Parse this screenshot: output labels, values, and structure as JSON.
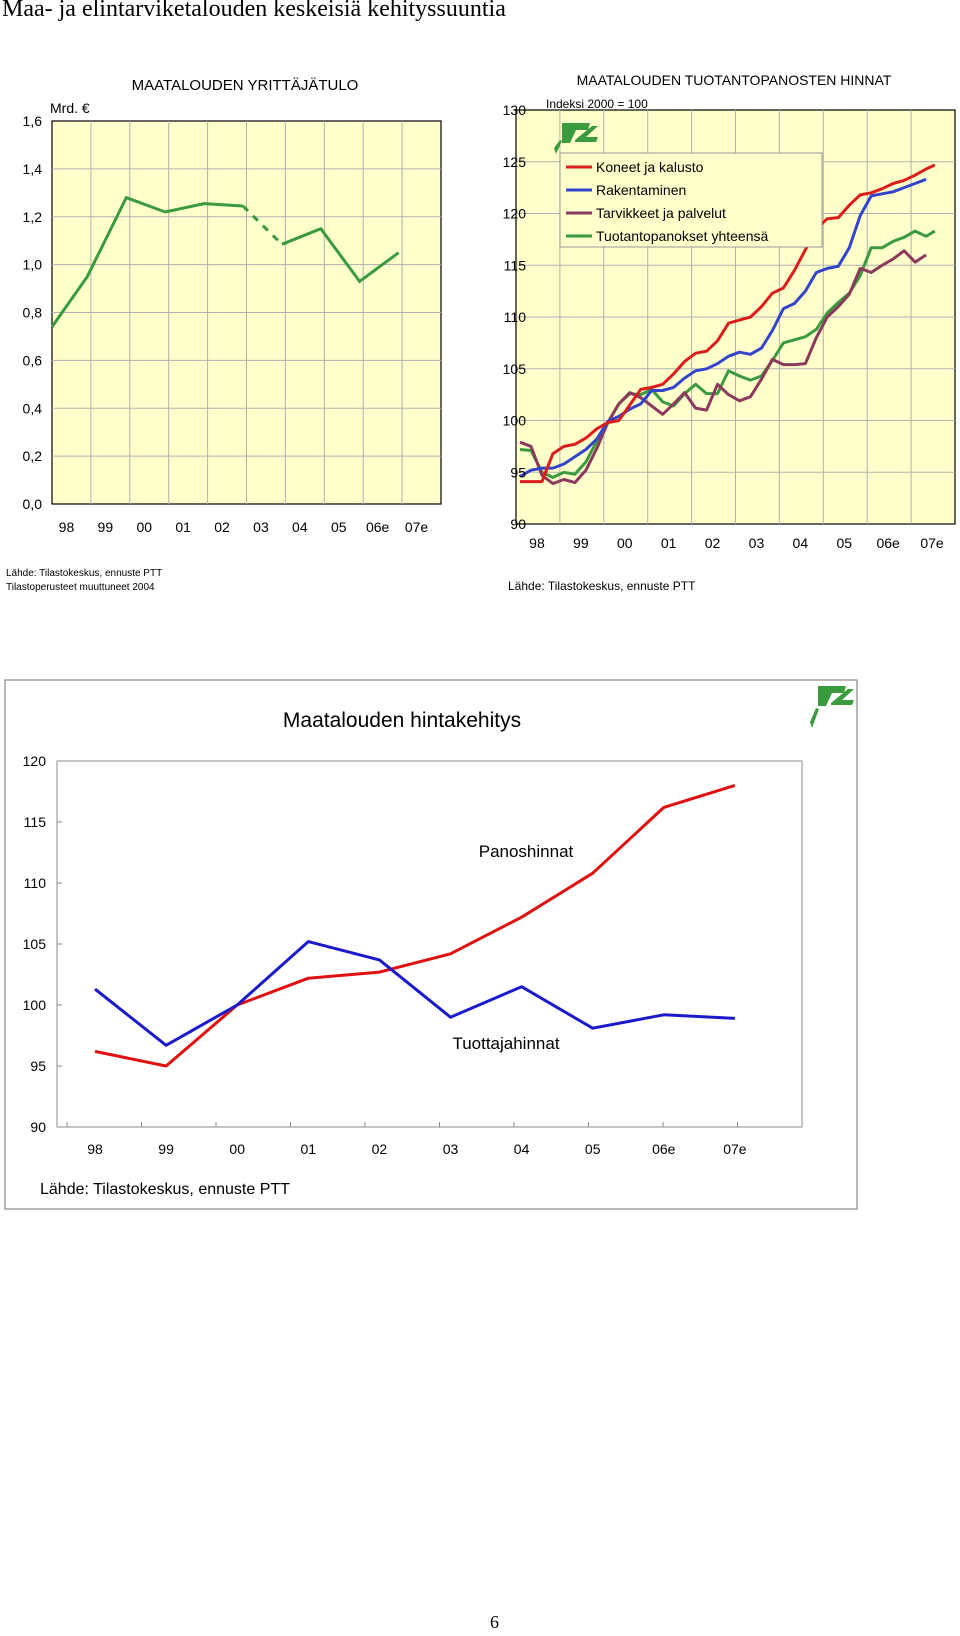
{
  "page": {
    "title": "Maa- ja elintarviketalouden keskeisiä kehityssuuntia",
    "page_number": "6"
  },
  "colors": {
    "plot_bg": "#ffffcc",
    "grid": "#b0b0b0",
    "green": "#3a9a3e",
    "red": "#dd1c1c",
    "blue": "#3344cc",
    "purple": "#8b3a5e",
    "chart3_red": "#e01010",
    "chart3_blue": "#1a1acc"
  },
  "chart_data": [
    {
      "type": "line",
      "title": "MAATALOUDEN YRITTÄJÄTULO",
      "unit_label": "Mrd. €",
      "categories": [
        "98",
        "99",
        "00",
        "01",
        "02",
        "03",
        "04",
        "05",
        "06e",
        "07e"
      ],
      "ylim": [
        0.0,
        1.6
      ],
      "yticks": [
        "0,0",
        "0,2",
        "0,4",
        "0,6",
        "0,8",
        "1,0",
        "1,2",
        "1,4",
        "1,6"
      ],
      "grid": true,
      "series": [
        {
          "values": [
            0.74,
            0.95,
            1.28,
            1.22,
            1.255,
            1.245,
            1.085,
            1.15,
            0.93,
            1.05
          ],
          "x": [
            0,
            1,
            2,
            3,
            4,
            5,
            6,
            7,
            8,
            9
          ],
          "dashed_between": [
            5,
            6
          ]
        }
      ],
      "source": "Lähde: Tilastokeskus, ennuste PTT",
      "note": "Tilastoperusteet muuttuneet 2004"
    },
    {
      "type": "line",
      "title": "MAATALOUDEN TUOTANTOPANOSTEN HINNAT",
      "subtitle": "Indeksi 2000 = 100",
      "categories": [
        "98",
        "99",
        "00",
        "01",
        "02",
        "03",
        "04",
        "05",
        "06e",
        "07e"
      ],
      "ylim": [
        90,
        130
      ],
      "yticks": [
        "90",
        "95",
        "100",
        "105",
        "110",
        "115",
        "120",
        "125",
        "130"
      ],
      "grid": true,
      "legend_position": "top-right",
      "series": [
        {
          "name": "Koneet ja kalusto",
          "color": "red",
          "values": [
            [
              0,
              94.1
            ],
            [
              0.5,
              94.1
            ],
            [
              0.75,
              96.8
            ],
            [
              1,
              97.5
            ],
            [
              1.25,
              97.7
            ],
            [
              1.5,
              98.3
            ],
            [
              1.75,
              99.2
            ],
            [
              2,
              99.8
            ],
            [
              2.25,
              100.0
            ],
            [
              2.5,
              101.5
            ],
            [
              2.75,
              103.0
            ],
            [
              3,
              103.2
            ],
            [
              3.25,
              103.5
            ],
            [
              3.5,
              104.5
            ],
            [
              3.75,
              105.7
            ],
            [
              4,
              106.5
            ],
            [
              4.25,
              106.7
            ],
            [
              4.5,
              107.7
            ],
            [
              4.75,
              109.4
            ],
            [
              5,
              109.7
            ],
            [
              5.25,
              110.0
            ],
            [
              5.5,
              111.0
            ],
            [
              5.75,
              112.3
            ],
            [
              6,
              112.8
            ],
            [
              6.25,
              114.5
            ],
            [
              6.5,
              116.5
            ],
            [
              6.75,
              118.5
            ],
            [
              7,
              119.5
            ],
            [
              7.25,
              119.6
            ],
            [
              7.5,
              120.8
            ],
            [
              7.75,
              121.8
            ],
            [
              8,
              122.0
            ],
            [
              8.25,
              122.4
            ],
            [
              8.5,
              122.9
            ],
            [
              8.75,
              123.2
            ],
            [
              9,
              123.7
            ],
            [
              9.25,
              124.3
            ],
            [
              9.45,
              124.7
            ]
          ]
        },
        {
          "name": "Rakentaminen",
          "color": "blue",
          "values": [
            [
              0,
              94.6
            ],
            [
              0.25,
              95.2
            ],
            [
              0.5,
              95.4
            ],
            [
              0.75,
              95.4
            ],
            [
              1,
              95.8
            ],
            [
              1.25,
              96.5
            ],
            [
              1.5,
              97.2
            ],
            [
              1.75,
              98.2
            ],
            [
              2,
              99.9
            ],
            [
              2.25,
              100.4
            ],
            [
              2.5,
              101.1
            ],
            [
              2.75,
              101.6
            ],
            [
              3,
              102.9
            ],
            [
              3.25,
              102.9
            ],
            [
              3.5,
              103.2
            ],
            [
              3.75,
              104.1
            ],
            [
              4,
              104.8
            ],
            [
              4.25,
              105.0
            ],
            [
              4.5,
              105.5
            ],
            [
              4.75,
              106.2
            ],
            [
              5,
              106.6
            ],
            [
              5.25,
              106.4
            ],
            [
              5.5,
              107.0
            ],
            [
              5.75,
              108.7
            ],
            [
              6,
              110.8
            ],
            [
              6.25,
              111.3
            ],
            [
              6.5,
              112.5
            ],
            [
              6.75,
              114.3
            ],
            [
              7,
              114.7
            ],
            [
              7.25,
              114.9
            ],
            [
              7.5,
              116.7
            ],
            [
              7.75,
              119.8
            ],
            [
              8,
              121.7
            ],
            [
              8.25,
              121.9
            ],
            [
              8.5,
              122.1
            ],
            [
              8.75,
              122.5
            ],
            [
              9,
              122.9
            ],
            [
              9.25,
              123.3
            ]
          ]
        },
        {
          "name": "Tarvikkeet ja palvelut",
          "color": "purple",
          "values": [
            [
              0,
              97.9
            ],
            [
              0.25,
              97.5
            ],
            [
              0.5,
              94.7
            ],
            [
              0.75,
              93.9
            ],
            [
              1,
              94.3
            ],
            [
              1.25,
              94.0
            ],
            [
              1.5,
              95.2
            ],
            [
              1.75,
              97.3
            ],
            [
              2,
              99.8
            ],
            [
              2.25,
              101.6
            ],
            [
              2.5,
              102.7
            ],
            [
              2.75,
              102.2
            ],
            [
              3,
              101.4
            ],
            [
              3.25,
              100.6
            ],
            [
              3.5,
              101.6
            ],
            [
              3.75,
              102.7
            ],
            [
              4,
              101.2
            ],
            [
              4.25,
              101.0
            ],
            [
              4.5,
              103.5
            ],
            [
              4.75,
              102.5
            ],
            [
              5,
              101.9
            ],
            [
              5.25,
              102.3
            ],
            [
              5.5,
              104.0
            ],
            [
              5.75,
              105.9
            ],
            [
              6,
              105.4
            ],
            [
              6.25,
              105.4
            ],
            [
              6.5,
              105.5
            ],
            [
              6.75,
              108.0
            ],
            [
              7,
              110.0
            ],
            [
              7.25,
              111.0
            ],
            [
              7.5,
              112.2
            ],
            [
              7.75,
              114.7
            ],
            [
              8,
              114.3
            ],
            [
              8.25,
              115.0
            ],
            [
              8.5,
              115.6
            ],
            [
              8.75,
              116.4
            ],
            [
              9,
              115.3
            ],
            [
              9.25,
              116.0
            ]
          ]
        },
        {
          "name": "Tuotantopanokset yhteensä",
          "color": "green",
          "values": [
            [
              0,
              97.2
            ],
            [
              0.25,
              97.1
            ],
            [
              0.5,
              95.0
            ],
            [
              0.75,
              94.5
            ],
            [
              1,
              95.0
            ],
            [
              1.25,
              94.8
            ],
            [
              1.5,
              96.0
            ],
            [
              1.75,
              98.0
            ],
            [
              2,
              99.8
            ],
            [
              2.25,
              101.6
            ],
            [
              2.5,
              102.6
            ],
            [
              2.75,
              102.5
            ],
            [
              3,
              103.0
            ],
            [
              3.25,
              101.8
            ],
            [
              3.5,
              101.4
            ],
            [
              3.75,
              102.6
            ],
            [
              4,
              103.5
            ],
            [
              4.25,
              102.6
            ],
            [
              4.5,
              102.6
            ],
            [
              4.75,
              104.8
            ],
            [
              5,
              104.3
            ],
            [
              5.25,
              103.9
            ],
            [
              5.5,
              104.3
            ],
            [
              5.75,
              105.8
            ],
            [
              6,
              107.5
            ],
            [
              6.25,
              107.8
            ],
            [
              6.5,
              108.1
            ],
            [
              6.75,
              108.8
            ],
            [
              7,
              110.4
            ],
            [
              7.25,
              111.4
            ],
            [
              7.5,
              112.3
            ],
            [
              7.75,
              114.0
            ],
            [
              8,
              116.7
            ],
            [
              8.25,
              116.7
            ],
            [
              8.5,
              117.3
            ],
            [
              8.75,
              117.7
            ],
            [
              9,
              118.3
            ],
            [
              9.25,
              117.8
            ],
            [
              9.45,
              118.3
            ]
          ]
        }
      ],
      "source": "Lähde: Tilastokeskus, ennuste PTT"
    },
    {
      "type": "line",
      "title": "Maatalouden hintakehitys",
      "categories": [
        "98",
        "99",
        "00",
        "01",
        "02",
        "03",
        "04",
        "05",
        "06e",
        "07e"
      ],
      "ylim": [
        90,
        120
      ],
      "yticks": [
        "90",
        "95",
        "100",
        "105",
        "110",
        "115",
        "120"
      ],
      "grid": false,
      "series": [
        {
          "name": "Panoshinnat",
          "color": "chart3_red",
          "values": [
            96.2,
            95.0,
            100.0,
            102.2,
            102.7,
            104.2,
            107.2,
            110.8,
            116.2,
            118.0
          ]
        },
        {
          "name": "Tuottajahinnat",
          "color": "chart3_blue",
          "values": [
            101.3,
            96.7,
            100.0,
            105.2,
            103.7,
            99.0,
            101.5,
            98.1,
            99.2,
            98.9
          ]
        }
      ],
      "source": "Lähde: Tilastokeskus, ennuste PTT"
    }
  ]
}
